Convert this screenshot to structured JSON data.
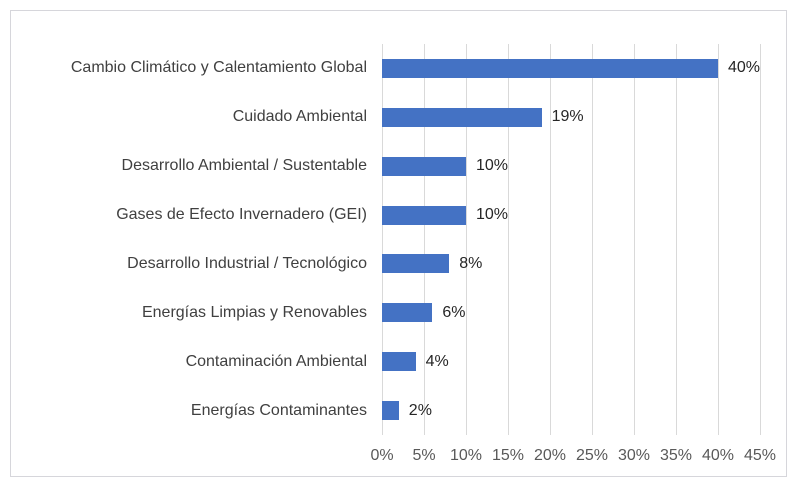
{
  "chart_data": {
    "type": "bar",
    "orientation": "horizontal",
    "title": "",
    "categories": [
      "Cambio Climático y Calentamiento Global",
      "Cuidado Ambiental",
      "Desarrollo Ambiental / Sustentable",
      "Gases de Efecto Invernadero (GEI)",
      "Desarrollo Industrial / Tecnológico",
      "Energías Limpias y Renovables",
      "Contaminación Ambiental",
      "Energías Contaminantes"
    ],
    "values": [
      40,
      19,
      10,
      10,
      8,
      6,
      4,
      2
    ],
    "value_labels": [
      "40%",
      "19%",
      "10%",
      "10%",
      "8%",
      "6%",
      "4%",
      "2%"
    ],
    "x_tick_values": [
      0,
      5,
      10,
      15,
      20,
      25,
      30,
      35,
      40,
      45
    ],
    "x_tick_labels": [
      "0%",
      "5%",
      "10%",
      "15%",
      "20%",
      "25%",
      "30%",
      "35%",
      "40%",
      "45%"
    ],
    "xlim": [
      0,
      45
    ],
    "grid": true,
    "legend": false,
    "xlabel": "",
    "ylabel": "",
    "colors": {
      "bar": "#4472C4",
      "gridline": "#D9D9D9",
      "frame_border": "#D6D6DB",
      "category_text": "#404040",
      "value_text": "#262626",
      "tick_text": "#595959",
      "background": "#FFFFFF"
    }
  }
}
